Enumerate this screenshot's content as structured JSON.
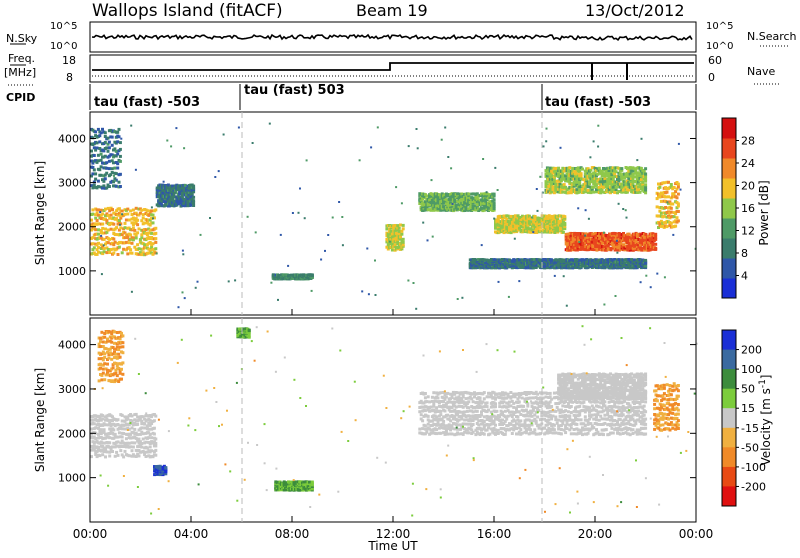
{
  "header": {
    "station": "Wallops Island (fitACF)",
    "beam": "Beam 19",
    "date": "13/Oct/2012"
  },
  "top_panels": {
    "nsky_label": "N.Sky",
    "nsky_ticks": [
      "10^5",
      "10^0"
    ],
    "nsearch_label": "N.Search",
    "nsearch_ticks": [
      "10^5",
      "10^0"
    ],
    "freq_label": "Freq.",
    "freq_unit": "[MHz]",
    "freq_ticks": [
      "18",
      "8"
    ],
    "nave_label": "Nave",
    "nave_ticks": [
      "60",
      "0"
    ],
    "cpid_label": "CPID",
    "cpid_segments": [
      {
        "label": "tau (fast) -503",
        "start_h": 0,
        "end_h": 6
      },
      {
        "label": "tau (fast) 503",
        "start_h": 6,
        "end_h": 18
      },
      {
        "label": "tau (fast) -503",
        "start_h": 18,
        "end_h": 24
      }
    ]
  },
  "colors": {
    "power_scale": [
      "#1a2fd6",
      "#2f57a8",
      "#3a7c6c",
      "#4e9a66",
      "#8fc84a",
      "#f2c02a",
      "#f0892a",
      "#e8461e",
      "#d41010"
    ],
    "velocity_scale": [
      "#1a2fd6",
      "#3a6aa0",
      "#3c8c3c",
      "#7ccc3c",
      "#c8c8c8",
      "#f0b040",
      "#f08a28",
      "#e84a14",
      "#e01010"
    ]
  },
  "chart_data": [
    {
      "type": "heatmap",
      "name": "power",
      "xlabel": "Time UT",
      "x_ticks": [
        "00:00",
        "04:00",
        "08:00",
        "12:00",
        "16:00",
        "20:00",
        "00:00"
      ],
      "xlim_hours": [
        0,
        24
      ],
      "ylabel": "Slant Range [km]",
      "ylim": [
        0,
        4600
      ],
      "y_ticks": [
        1000,
        2000,
        3000,
        4000
      ],
      "colorbar_label": "Power [dB]",
      "colorbar_ticks": [
        4,
        8,
        12,
        16,
        20,
        24,
        28
      ],
      "colorbar_range": [
        0,
        32
      ],
      "echo_bands": [
        {
          "t_start": 0.0,
          "t_end": 2.6,
          "range_start_km": 1400,
          "range_end_km": 2500,
          "power_db": 20
        },
        {
          "t_start": 0.0,
          "t_end": 1.2,
          "range_start_km": 2900,
          "range_end_km": 4300,
          "power_db": 8
        },
        {
          "t_start": 2.6,
          "t_end": 4.1,
          "range_start_km": 2500,
          "range_end_km": 3000,
          "power_db": 8
        },
        {
          "t_start": 7.2,
          "t_end": 8.8,
          "range_start_km": 850,
          "range_end_km": 950,
          "power_db": 10
        },
        {
          "t_start": 11.7,
          "t_end": 12.4,
          "range_start_km": 1500,
          "range_end_km": 2100,
          "power_db": 18
        },
        {
          "t_start": 13.0,
          "t_end": 16.0,
          "range_start_km": 2400,
          "range_end_km": 2800,
          "power_db": 14
        },
        {
          "t_start": 16.0,
          "t_end": 18.8,
          "range_start_km": 1900,
          "range_end_km": 2300,
          "power_db": 18
        },
        {
          "t_start": 18.8,
          "t_end": 22.4,
          "range_start_km": 1500,
          "range_end_km": 1900,
          "power_db": 26
        },
        {
          "t_start": 18.0,
          "t_end": 22.0,
          "range_start_km": 2800,
          "range_end_km": 3400,
          "power_db": 16
        },
        {
          "t_start": 22.4,
          "t_end": 23.3,
          "range_start_km": 2000,
          "range_end_km": 3100,
          "power_db": 20
        },
        {
          "t_start": 15.0,
          "t_end": 22.0,
          "range_start_km": 1100,
          "range_end_km": 1300,
          "power_db": 8
        }
      ]
    },
    {
      "type": "heatmap",
      "name": "velocity",
      "xlabel": "Time UT",
      "x_ticks": [
        "00:00",
        "04:00",
        "08:00",
        "12:00",
        "16:00",
        "20:00",
        "00:00"
      ],
      "xlim_hours": [
        0,
        24
      ],
      "ylabel": "Slant Range [km]",
      "ylim": [
        0,
        4600
      ],
      "y_ticks": [
        1000,
        2000,
        3000,
        4000
      ],
      "colorbar_label": "Velocity [m s^-1]",
      "colorbar_ticks": [
        200,
        100,
        50,
        15,
        -15,
        -50,
        -100,
        -200
      ],
      "echo_bands": [
        {
          "t_start": 0.0,
          "t_end": 2.6,
          "range_start_km": 1500,
          "range_end_km": 2500,
          "velocity": 0
        },
        {
          "t_start": 0.3,
          "t_end": 1.3,
          "range_start_km": 3200,
          "range_end_km": 4400,
          "velocity": -50
        },
        {
          "t_start": 2.5,
          "t_end": 3.0,
          "range_start_km": 1100,
          "range_end_km": 1300,
          "velocity": 200
        },
        {
          "t_start": 5.8,
          "t_end": 6.3,
          "range_start_km": 4200,
          "range_end_km": 4400,
          "velocity": 50
        },
        {
          "t_start": 7.3,
          "t_end": 8.8,
          "range_start_km": 750,
          "range_end_km": 950,
          "velocity": 50
        },
        {
          "t_start": 13.0,
          "t_end": 22.0,
          "range_start_km": 2000,
          "range_end_km": 3000,
          "velocity": 0
        },
        {
          "t_start": 18.5,
          "t_end": 22.0,
          "range_start_km": 2800,
          "range_end_km": 3400,
          "velocity": 0
        },
        {
          "t_start": 22.3,
          "t_end": 23.3,
          "range_start_km": 2100,
          "range_end_km": 3200,
          "velocity": -50
        }
      ]
    }
  ]
}
